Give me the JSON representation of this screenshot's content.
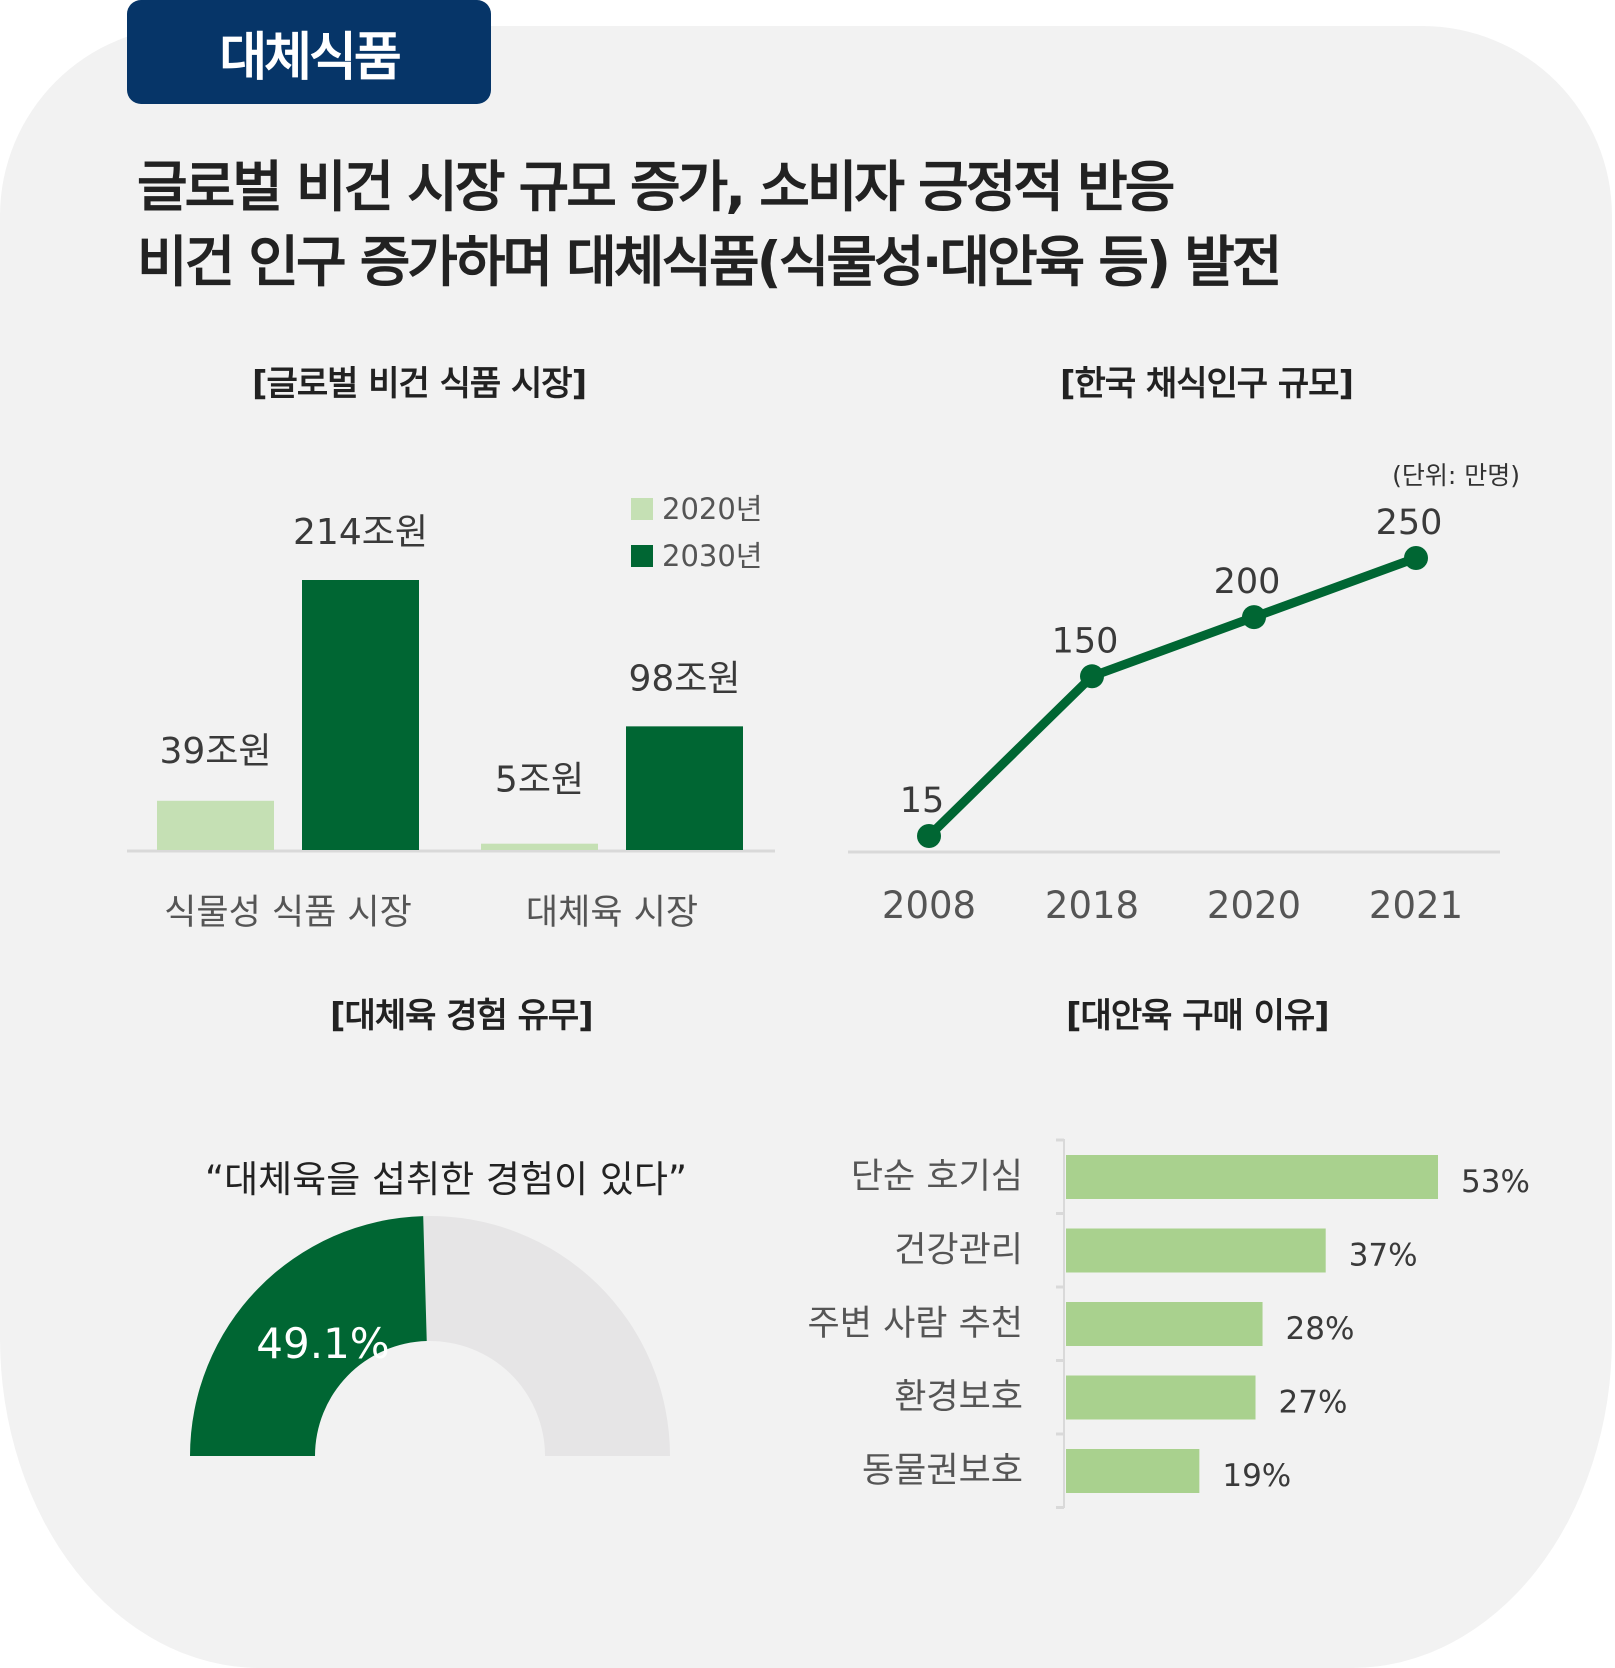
{
  "badge": {
    "label": "대체식품"
  },
  "headline": {
    "line1": "글로벌 비건 시장 규모 증가, 소비자 긍정적 반응",
    "line2": "비건 인구 증가하며 대체식품(식물성·대안육 등) 발전"
  },
  "colors": {
    "badge_bg": "#063568",
    "dark_green": "#006633",
    "light_green_bar": "#c5e0b4",
    "reason_bar": "#a9d18e",
    "donut_rest": "#e6e5e6",
    "card_bg": "#f2f2f2"
  },
  "chart_data": [
    {
      "id": "global-vegan-market",
      "type": "bar",
      "title": "[글로벌 비건 식품 시장]",
      "categories": [
        "식물성 식품 시장",
        "대체육 시장"
      ],
      "series": [
        {
          "name": "2020년",
          "values": [
            39,
            5
          ],
          "labels": [
            "39조원",
            "5조원"
          ]
        },
        {
          "name": "2030년",
          "values": [
            214,
            98
          ],
          "labels": [
            "214조원",
            "98조원"
          ]
        }
      ],
      "unit": "조원",
      "ylim": [
        0,
        214
      ],
      "grid": false,
      "legend": "top-right"
    },
    {
      "id": "korea-vegetarian-population",
      "type": "line",
      "title": "[한국 채식인구 규모]",
      "unit_note": "(단위: 만명)",
      "x": [
        "2008",
        "2018",
        "2020",
        "2021"
      ],
      "values": [
        15,
        150,
        200,
        250
      ],
      "labels": [
        "15",
        "150",
        "200",
        "250"
      ],
      "ylim": [
        0,
        250
      ],
      "grid": false
    },
    {
      "id": "alt-meat-experience",
      "type": "pie",
      "title": "[대체육 경험 유무]",
      "subtitle": "“대체육을 섭취한 경험이 있다”",
      "style": "half-donut",
      "values": [
        49.1,
        50.9
      ],
      "label": "49.1%"
    },
    {
      "id": "alt-meat-purchase-reasons",
      "type": "bar",
      "orientation": "horizontal",
      "title": "[대안육 구매 이유]",
      "categories": [
        "단순 호기심",
        "건강관리",
        "주변 사람 추천",
        "환경보호",
        "동물권보호"
      ],
      "values": [
        53,
        37,
        28,
        27,
        19
      ],
      "labels": [
        "53%",
        "37%",
        "28%",
        "27%",
        "19%"
      ],
      "unit": "%",
      "xlim": [
        0,
        53
      ]
    }
  ]
}
